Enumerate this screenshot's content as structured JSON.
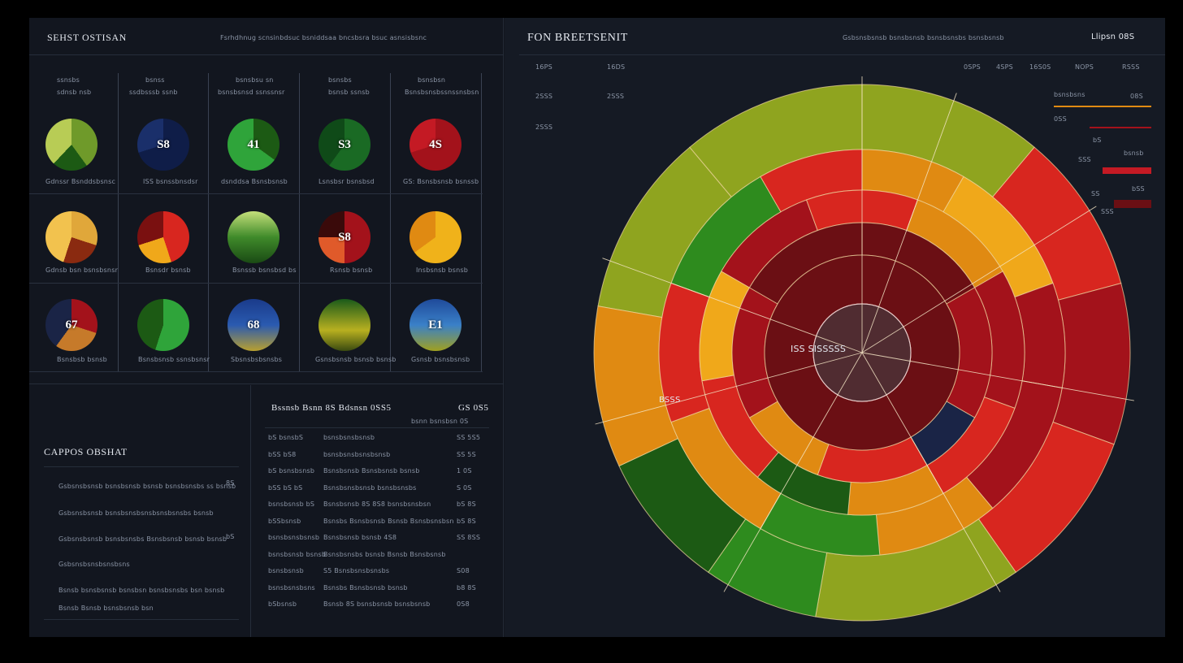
{
  "left_panel": {
    "title": "SEHST OSTISAN",
    "subtitle": "Fsrhdhnug scnsinbdsuc bsniddsaa bncsbsra bsuc asnsisbsnc",
    "cards": [
      {
        "header": "ssnsbs",
        "sub": "sdnsb nsb",
        "value": "",
        "caption": "Gdnssr Bsnddsbsnsc"
      },
      {
        "header": "bsnss",
        "sub": "ssdbsssb ssnb",
        "value": "S8",
        "caption": "ISS bsnssbnsdsr"
      },
      {
        "header": "bsnsbsu sn",
        "sub": "bsnsbsnsd ssnssnsr",
        "value": "41",
        "caption": "dsnddsa Bsnsbsnsb"
      },
      {
        "header": "bsnsbs",
        "sub": "bsnsb ssnsb",
        "value": "S3",
        "caption": "Lsnsbsr bsnsbsd"
      },
      {
        "header": "bsnsbsn",
        "sub": "Bsnsbsnsbssnssnsbsn",
        "value": "4S",
        "caption": "GS: Bsnsbsnsb bsnssb"
      },
      {
        "header": "",
        "sub": "",
        "value": "",
        "caption": "Gdnsb bsn bsnsbsnsr"
      },
      {
        "header": "",
        "sub": "",
        "value": "",
        "caption": "Bsnsdr bsnsb"
      },
      {
        "header": "",
        "sub": "",
        "value": "",
        "caption": "Bsnssb bsnsbsd bs"
      },
      {
        "header": "",
        "sub": "",
        "value": "S8",
        "caption": "Rsnsb bsnsb"
      },
      {
        "header": "",
        "sub": "",
        "value": "",
        "caption": "Insbsnsb bsnsb"
      },
      {
        "header": "",
        "sub": "",
        "value": "67",
        "caption": "Bsnsbsb bsnsb"
      },
      {
        "header": "",
        "sub": "",
        "value": "",
        "caption": "Bsnsbsnsb ssnsbsnsr"
      },
      {
        "header": "",
        "sub": "",
        "value": "68",
        "caption": "Sbsnsbsbsnsbs"
      },
      {
        "header": "",
        "sub": "",
        "value": "",
        "caption": "Gsnsbsnsb bsnsb bsnsb"
      },
      {
        "header": "",
        "sub": "",
        "value": "E1",
        "caption": "Gsnsb bsnsbsnsb"
      }
    ],
    "callout": {
      "title": "CAPPOS OBSHAT",
      "items": [
        {
          "text": "Gsbsnsbsnsb bsnsbsnsb bsnsb bsnsbsnsbs ss bsnsb",
          "val": "8S"
        },
        {
          "text": "Gsbsnsbsnsb bsnsbsnsbsnsbsnsbsnsbs bsnsb",
          "val": ""
        },
        {
          "text": "Gsbsnsbsnsb bsnsbsnsbs Bsnsbsnsb bsnsb bsnsb",
          "val": "bS"
        },
        {
          "text": "Gsbsnsbsnsbsnsbsns",
          "val": ""
        },
        {
          "text": "Bsnsb bsnsbsnsb bsnsbsn bsnsbsnsbs bsn bsnsb",
          "val": ""
        },
        {
          "text": "Bsnsb Bsnsb bsnsbsnsb bsn",
          "val": ""
        }
      ]
    },
    "table": {
      "title": "Bssnsb Bsnn 8S Bdsnsn 0SS5",
      "title_val": "GS 0S5",
      "subhead": "bsnn bsnsbsn 0S",
      "rows": [
        {
          "a": "bS bsnsbS",
          "b": "bsnsbsnsbsnsb",
          "c": "SS 5S5"
        },
        {
          "a": "bSS bS8",
          "b": "bsnsbsnsbsnsbsnsb",
          "c": "SS 5S"
        },
        {
          "a": "bS bsnsbsnsb",
          "b": "Bsnsbsnsb Bsnsbsnsb bsnsb",
          "c": "1 0S"
        },
        {
          "a": "bSS bS bS",
          "b": "Bsnsbsnsbsnsb bsnsbsnsbs",
          "c": "S 0S"
        },
        {
          "a": "bsnsbsnsb bS",
          "b": "Bsnsbsnsb 8S 8S8 bsnsbsnsbsn",
          "c": "bS 8S"
        },
        {
          "a": "bSSbsnsb",
          "b": "Bsnsbs Bsnsbsnsb Bsnsb Bsnsbsnsbsn",
          "c": "bS 8S"
        },
        {
          "a": "bsnsbsnsbsnsb",
          "b": "Bsnsbsnsb bsnsb 4S8",
          "c": "SS 8SS"
        },
        {
          "a": "bsnsbsnsb bsnsb",
          "b": "Bsnsbsnsbs bsnsb Bsnsb Bsnsbsnsb",
          "c": ""
        },
        {
          "a": "bsnsbsnsb",
          "b": "S5 Bsnsbsnsbsnsbs",
          "c": "S08"
        },
        {
          "a": "bsnsbsnsbsns",
          "b": "Bsnsbs Bsnsbsnsb bsnsb",
          "c": "b8 8S"
        },
        {
          "a": "bSbsnsb",
          "b": "Bsnsb 8S bsnsbsnsb bsnsbsnsb",
          "c": "0S8"
        }
      ]
    }
  },
  "right_panel": {
    "title": "FON BREETSENIT",
    "subtitle": "Gsbsnsbsnsb bsnsbsnsb bsnsbsnsbs bsnsbsnsb",
    "corner": "Llipsn 08S",
    "stats_left": [
      "16PS",
      "16DS",
      "2SSS",
      "2SSS",
      "2SSS"
    ],
    "stats_top": [
      "0SPS",
      "4SPS",
      "16S0S",
      "NOPS",
      "RSSS"
    ],
    "center_label": "ISS SISSSSS",
    "ring_label": "BSSS",
    "legend": [
      {
        "label": "bsnsbsns",
        "val": "08S"
      },
      {
        "label": "0SS",
        "val": ""
      },
      {
        "label": "bS",
        "val": "bsnsb"
      },
      {
        "label": "SSS",
        "val": ""
      },
      {
        "label": "SS",
        "val": "bSS"
      },
      {
        "label": "SSS",
        "val": ""
      }
    ]
  },
  "colors": {
    "bg": "#12161f",
    "olive": "#8fa41f",
    "green": "#2e8b1e",
    "darkgreen": "#1c5a14",
    "orange": "#e08a12",
    "amber": "#f0a81a",
    "red": "#d8261f",
    "crimson": "#a3121b",
    "maroon": "#6b0f14",
    "navy": "#1a2446"
  }
}
